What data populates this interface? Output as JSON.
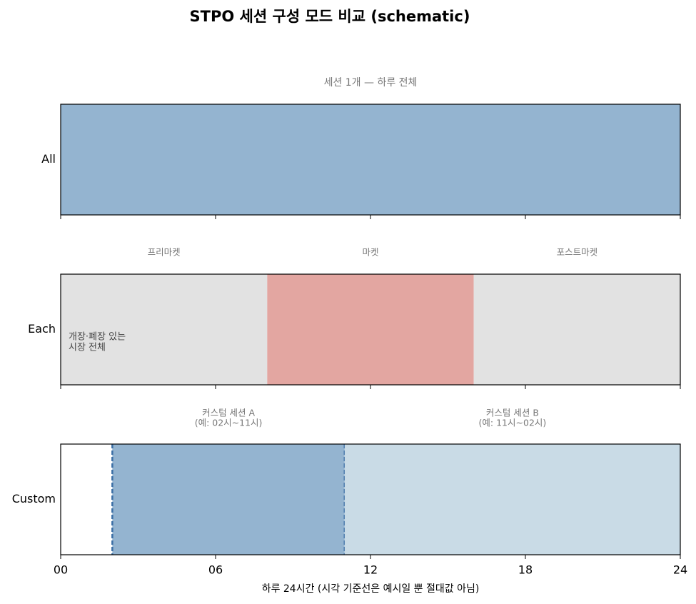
{
  "chart_data": {
    "type": "span",
    "title": "STPO 세션 구성 모드 비교 (schematic)",
    "xlabel": "하루 24시간 (시각 기준선은 예시일 뿐 절대값 아님)",
    "xlim": [
      0,
      24
    ],
    "xticks": [
      {
        "value": 0,
        "label": "00"
      },
      {
        "value": 6,
        "label": "06"
      },
      12,
      18,
      24
    ],
    "panels": [
      {
        "label": "All",
        "subtitle": "세션 1개 — 하루 전체",
        "segments": [
          {
            "start": 0,
            "end": 24,
            "color": "#94b4d0"
          }
        ]
      },
      {
        "label": "Each",
        "annotation": [
          "개장·폐장 있는",
          "시장 전체"
        ],
        "segments": [
          {
            "name": "프리마켓",
            "start": 0,
            "end": 8,
            "color": "#e2e2e2"
          },
          {
            "name": "마켓",
            "start": 8,
            "end": 16,
            "color": "#e3a6a1"
          },
          {
            "name": "포스트마켓",
            "start": 16,
            "end": 24,
            "color": "#e2e2e2"
          }
        ]
      },
      {
        "label": "Custom",
        "segments": [
          {
            "name": "커스텀 세션 A",
            "note": "(예: 02시~11시)",
            "start": 2,
            "end": 11,
            "color": "#94b4d0",
            "border": "dashed",
            "border_color": "#3a6ea5"
          },
          {
            "name": "커스텀 세션 B",
            "note": "(예: 11시~02시)",
            "start": 11,
            "end": 24,
            "color": "#c9dbe6"
          }
        ]
      }
    ]
  }
}
